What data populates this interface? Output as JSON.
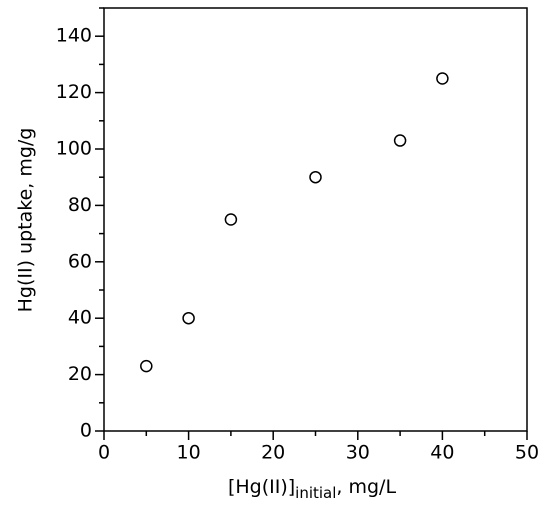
{
  "chart_data": {
    "type": "scatter",
    "xlabel": {
      "main": "[Hg(II)]",
      "subscript": "initial",
      "suffix": ", mg/L"
    },
    "ylabel": "Hg(II) uptake, mg/g",
    "x": [
      5,
      10,
      15,
      25,
      35,
      40
    ],
    "values": [
      23,
      40,
      75,
      90,
      103,
      125
    ],
    "color": "#000000",
    "xlim": [
      0,
      50
    ],
    "xticks": [
      0,
      10,
      20,
      30,
      40,
      50
    ],
    "xminorticks": [
      5,
      15,
      25,
      35,
      45
    ],
    "ylim": [
      0,
      150
    ],
    "yticks": [
      0,
      20,
      40,
      60,
      80,
      100,
      120,
      140
    ],
    "yminorticks": [
      10,
      30,
      50,
      70,
      90,
      110,
      130,
      150
    ],
    "grid": false
  }
}
